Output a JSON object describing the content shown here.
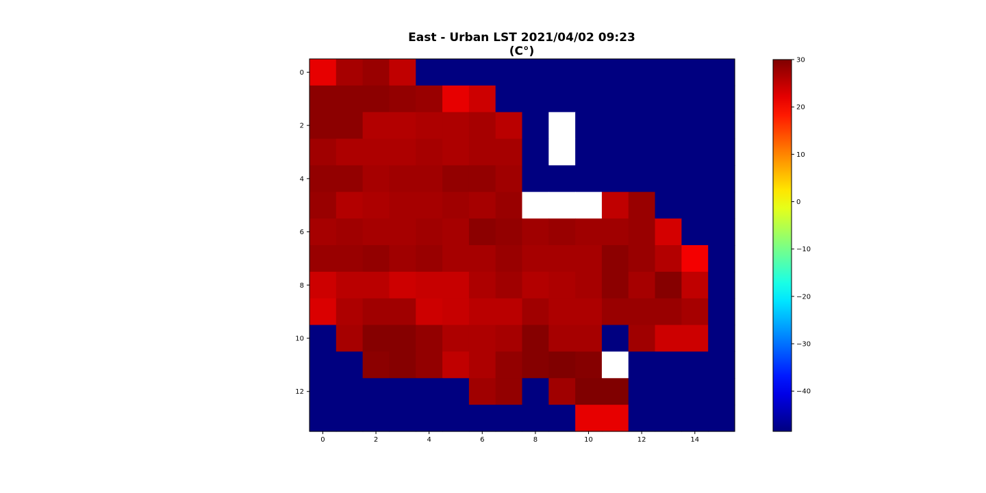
{
  "chart_data": {
    "type": "heatmap",
    "title": "East - Urban LST 2021/04/02 09:23",
    "subtitle": "(C°)",
    "xlabel": "",
    "ylabel": "",
    "n_cols": 16,
    "n_rows": 14,
    "x_ticks": [
      0,
      2,
      4,
      6,
      8,
      10,
      12,
      14
    ],
    "y_ticks": [
      0,
      2,
      4,
      6,
      8,
      10,
      12
    ],
    "colormap": "jet",
    "vmin": -48.5,
    "vmax": 30,
    "colorbar_ticks": [
      30,
      20,
      10,
      0,
      -10,
      -20,
      -30,
      -40
    ],
    "colorbar_labels": [
      "30",
      "20",
      "10",
      "0",
      "−10",
      "−20",
      "−30",
      "−40"
    ],
    "grid": false,
    "missing_color": "#ffffff",
    "values": [
      [
        22,
        27,
        28,
        25,
        -48.5,
        -48.5,
        -48.5,
        -48.5,
        -48.5,
        -48.5,
        -48.5,
        -48.5,
        -48.5,
        -48.5,
        -48.5,
        -48.5
      ],
      [
        29,
        29,
        29,
        28.5,
        28,
        22,
        24,
        -48.5,
        -48.5,
        -48.5,
        -48.5,
        -48.5,
        -48.5,
        -48.5,
        -48.5,
        -48.5
      ],
      [
        29,
        29,
        26,
        26,
        26.5,
        26.5,
        27,
        25.5,
        -48.5,
        null,
        -48.5,
        -48.5,
        -48.5,
        -48.5,
        -48.5,
        -48.5
      ],
      [
        27.5,
        26.5,
        26.5,
        26.5,
        27,
        26.5,
        27,
        27,
        -48.5,
        null,
        -48.5,
        -48.5,
        -48.5,
        -48.5,
        -48.5,
        -48.5
      ],
      [
        28.5,
        28.5,
        27,
        27.5,
        27.5,
        28.5,
        28.5,
        27.5,
        -48.5,
        -48.5,
        -48.5,
        -48.5,
        -48.5,
        -48.5,
        -48.5,
        -48.5
      ],
      [
        28,
        26,
        26.5,
        27,
        27,
        27.5,
        27,
        28,
        null,
        null,
        null,
        25,
        28,
        -48.5,
        -48.5,
        -48.5
      ],
      [
        27,
        27.5,
        27,
        27,
        27.5,
        27,
        29,
        28.5,
        27.5,
        28,
        27.5,
        27.5,
        28,
        23.5,
        -48.5,
        -48.5
      ],
      [
        28,
        28,
        28.5,
        27.5,
        28,
        27,
        27,
        28,
        27,
        27,
        27,
        29,
        28,
        26,
        21,
        -48.5
      ],
      [
        24,
        25.5,
        25.5,
        24,
        24.5,
        24.5,
        26.5,
        27.5,
        26,
        26.5,
        27,
        29,
        27,
        29.5,
        25,
        -48.5
      ],
      [
        23,
        26.5,
        27.5,
        27.5,
        24,
        24.5,
        25.5,
        25.5,
        27.5,
        26.5,
        26.5,
        28,
        28,
        28,
        27,
        -48.5
      ],
      [
        -48.5,
        27,
        29.5,
        29.5,
        28.5,
        26.5,
        26.5,
        27,
        29.5,
        27,
        27,
        -48.5,
        27.5,
        24,
        24,
        -48.5
      ],
      [
        -48.5,
        -48.5,
        29,
        29.5,
        28.5,
        25,
        26.5,
        28.5,
        29.5,
        30,
        29.5,
        null,
        -48.5,
        -48.5,
        -48.5,
        -48.5
      ],
      [
        -48.5,
        -48.5,
        -48.5,
        -48.5,
        -48.5,
        -48.5,
        27.5,
        28.5,
        -48.5,
        27.5,
        30,
        30,
        -48.5,
        -48.5,
        -48.5,
        -48.5
      ],
      [
        -48.5,
        -48.5,
        -48.5,
        -48.5,
        -48.5,
        -48.5,
        -48.5,
        -48.5,
        -48.5,
        -48.5,
        22,
        22,
        -48.5,
        -48.5,
        -48.5,
        -48.5
      ]
    ]
  }
}
